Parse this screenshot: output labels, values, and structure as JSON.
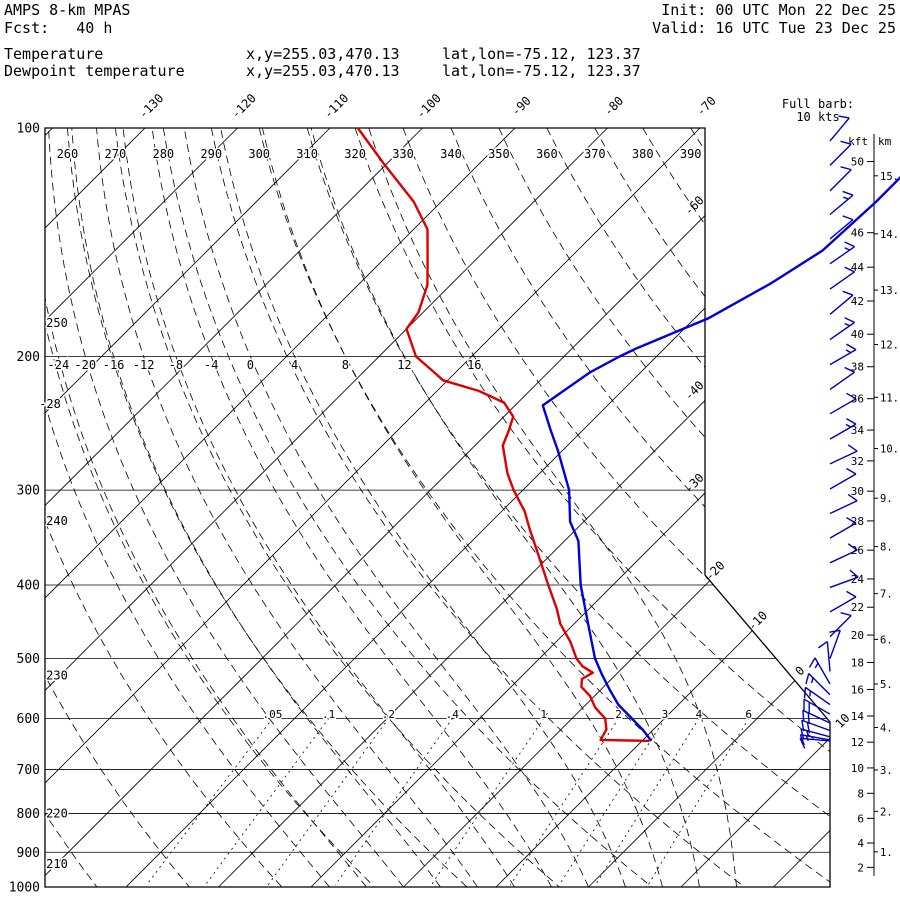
{
  "header": {
    "model": "AMPS 8-km MPAS",
    "fcst_line": "Fcst:   40 h",
    "init_line": "Init: 00 UTC Mon 22 Dec 25",
    "valid_line": "Valid: 16 UTC Tue 23 Dec 25",
    "temp_label": "Temperature",
    "temp_xy": "x,y=255.03,470.13",
    "temp_latlon": "lat,lon=-75.12, 123.37",
    "dewp_label": "Dewpoint temperature",
    "dewp_xy": "x,y=255.03,470.13",
    "dewp_latlon": "lat,lon=-75.12, 123.37"
  },
  "legend": {
    "full_barb_label": "Full barb:",
    "full_barb_value": "10 kts"
  },
  "axes": {
    "pressure_ticks": [
      100,
      200,
      300,
      400,
      500,
      600,
      700,
      800,
      900,
      1000
    ],
    "isotherm_top_labels_c": [
      -130,
      -120,
      -110,
      -100,
      -90,
      -80,
      -70
    ],
    "isotherm_right_labels_c": [
      -60,
      -40,
      -30
    ],
    "isotherm_edge_labels_c": [
      -20,
      -10,
      0,
      10
    ],
    "theta_top_labels_k": [
      260,
      270,
      280,
      290,
      300,
      310,
      320,
      330,
      340,
      350,
      360,
      370,
      380,
      390
    ],
    "theta_left_labels_k": [
      250,
      240,
      230,
      220,
      210
    ],
    "thetaw_200_labels_c": [
      -24,
      -20,
      -16,
      -12,
      -8,
      -4,
      0,
      4,
      8,
      12,
      16
    ],
    "thetaw_left_label_c": -28,
    "mixing_ratio_labels": [
      ".05",
      ".1",
      ".2",
      ".4",
      "1",
      "2",
      "3",
      "4",
      "6"
    ],
    "mixing_ratio_values_gkg": [
      0.05,
      0.1,
      0.2,
      0.4,
      1,
      2,
      3,
      4,
      6
    ],
    "alt_kft_header": "kft",
    "alt_km_header": "km",
    "alt_kft_labels": [
      50,
      46,
      44,
      42,
      40,
      38,
      36,
      34,
      32,
      30,
      28,
      26,
      24,
      22,
      20,
      18,
      16,
      14,
      12,
      10,
      8,
      6,
      4,
      2
    ],
    "alt_km_labels": [
      "15.",
      "14.",
      "13.",
      "12.",
      "11.",
      "10.",
      "9.",
      "8.",
      "7.",
      "6.",
      "5.",
      "4.",
      "3.",
      "2.",
      "1."
    ]
  },
  "colors": {
    "temperature": "#0000dd",
    "dewpoint": "#dd0000",
    "barbs": "#0000bb",
    "grid": "#000000"
  },
  "chart_data": {
    "type": "skewt-logp-sounding",
    "pressure_axis_hpa": [
      100,
      1000
    ],
    "isotherms_c": {
      "start": -140,
      "end": 30,
      "step": 10
    },
    "dry_adiabats_k": {
      "start": 210,
      "end": 390,
      "step": 10
    },
    "moist_adiabats_c": {
      "start": -28,
      "end": 16,
      "step": 4
    },
    "surface_pressure_hpa": 642,
    "temperature_profile_p_t": [
      [
        110,
        -43
      ],
      [
        125,
        -43
      ],
      [
        145,
        -43.5
      ],
      [
        160,
        -45.5
      ],
      [
        178,
        -48.5
      ],
      [
        195,
        -53
      ],
      [
        200,
        -54
      ],
      [
        210,
        -55.5
      ],
      [
        232,
        -57
      ],
      [
        250,
        -53.5
      ],
      [
        266,
        -50.5
      ],
      [
        300,
        -45
      ],
      [
        330,
        -41.5
      ],
      [
        350,
        -38.5
      ],
      [
        400,
        -33.5
      ],
      [
        450,
        -28.5
      ],
      [
        500,
        -24
      ],
      [
        525,
        -21.5
      ],
      [
        550,
        -19
      ],
      [
        575,
        -16.5
      ],
      [
        600,
        -13.5
      ],
      [
        620,
        -11.2
      ],
      [
        642,
        -9
      ]
    ],
    "dewpoint_profile_p_t": [
      [
        100,
        -107
      ],
      [
        112,
        -100
      ],
      [
        125,
        -93
      ],
      [
        136,
        -88.5
      ],
      [
        150,
        -85
      ],
      [
        161,
        -82.5
      ],
      [
        175,
        -80.5
      ],
      [
        184,
        -80
      ],
      [
        200,
        -76
      ],
      [
        208,
        -73
      ],
      [
        215,
        -70.5
      ],
      [
        222,
        -65.5
      ],
      [
        230,
        -61.5
      ],
      [
        240,
        -59
      ],
      [
        250,
        -58
      ],
      [
        262,
        -57
      ],
      [
        285,
        -53.5
      ],
      [
        300,
        -51
      ],
      [
        320,
        -47.5
      ],
      [
        338,
        -45
      ],
      [
        360,
        -42
      ],
      [
        400,
        -37
      ],
      [
        430,
        -33.5
      ],
      [
        450,
        -31.5
      ],
      [
        475,
        -28.5
      ],
      [
        500,
        -26
      ],
      [
        512,
        -24.5
      ],
      [
        522,
        -22.7
      ],
      [
        532,
        -23.2
      ],
      [
        545,
        -22.4
      ],
      [
        560,
        -20.5
      ],
      [
        580,
        -18.7
      ],
      [
        600,
        -16.4
      ],
      [
        620,
        -15.1
      ],
      [
        640,
        -14.6
      ],
      [
        642,
        -9.2
      ]
    ],
    "wind_barbs_p_dir_spd": [
      [
        104,
        40,
        10
      ],
      [
        112,
        45,
        10
      ],
      [
        121,
        45,
        10
      ],
      [
        130,
        50,
        15
      ],
      [
        140,
        50,
        10
      ],
      [
        151,
        55,
        15
      ],
      [
        163,
        55,
        10
      ],
      [
        176,
        50,
        10
      ],
      [
        190,
        55,
        15
      ],
      [
        205,
        60,
        15
      ],
      [
        221,
        55,
        10
      ],
      [
        238,
        60,
        10
      ],
      [
        257,
        60,
        15
      ],
      [
        277,
        65,
        10
      ],
      [
        299,
        60,
        10
      ],
      [
        322,
        65,
        10
      ],
      [
        347,
        60,
        10
      ],
      [
        374,
        65,
        10
      ],
      [
        403,
        70,
        10
      ],
      [
        434,
        60,
        10
      ],
      [
        468,
        45,
        10
      ],
      [
        500,
        20,
        10
      ],
      [
        520,
        355,
        10
      ],
      [
        540,
        330,
        15
      ],
      [
        558,
        315,
        15
      ],
      [
        575,
        305,
        15
      ],
      [
        592,
        300,
        20
      ],
      [
        608,
        295,
        20
      ],
      [
        622,
        290,
        20
      ],
      [
        634,
        285,
        15
      ],
      [
        640,
        280,
        15
      ],
      [
        642,
        275,
        10
      ]
    ]
  }
}
